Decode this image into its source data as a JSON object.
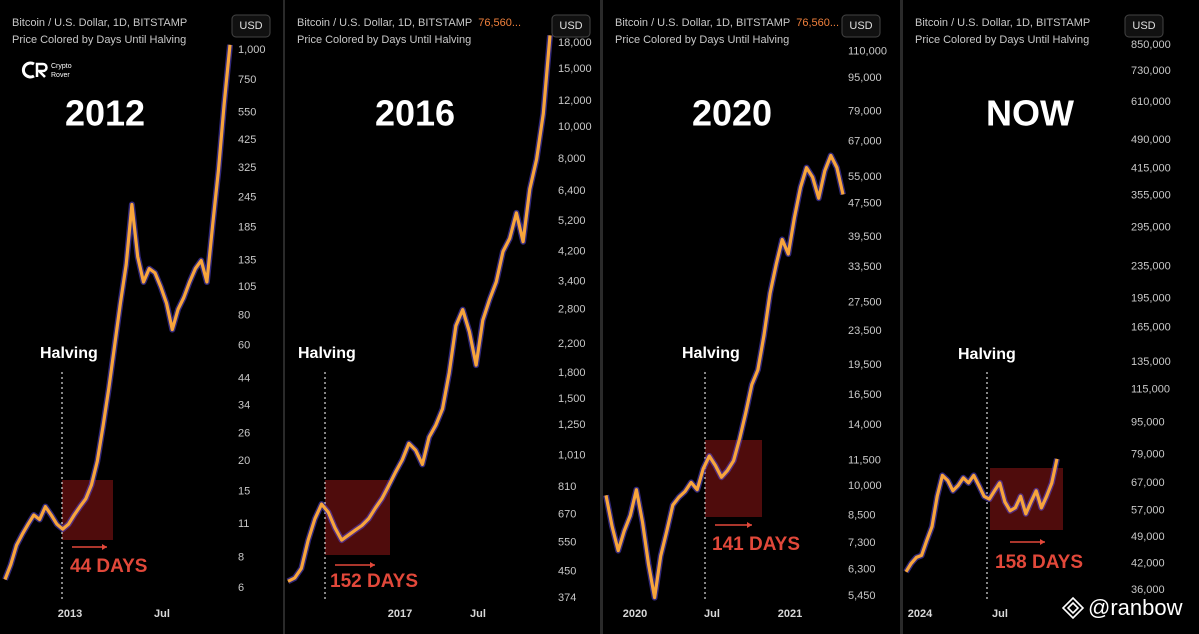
{
  "chart_data": [
    {
      "type": "line",
      "header": "Bitcoin / U.S. Dollar, 1D, BITSTAMP",
      "subtitle": "Price Colored by Days Until Halving",
      "currency": "USD",
      "title": "2012",
      "annotation": "Halving",
      "days_label": "44 DAYS",
      "color": "#f7a53c",
      "outline_color": "#5a48e0",
      "log_scale": true,
      "x_labels": [
        "2013",
        "Jul"
      ],
      "values": [
        6.5,
        7.5,
        9,
        10,
        11,
        12,
        11.5,
        13,
        12,
        11,
        10.5,
        11,
        12,
        13,
        14,
        16,
        20,
        28,
        40,
        60,
        90,
        130,
        230,
        140,
        110,
        125,
        120,
        105,
        90,
        70,
        85,
        95,
        110,
        125,
        135,
        110,
        190,
        320,
        600,
        1050
      ],
      "ylim": [
        5.1,
        1490
      ],
      "yticks": [
        {
          "value": 1000,
          "label": "1,000"
        },
        750,
        550,
        425,
        325,
        245,
        185,
        135,
        105,
        80,
        60,
        44,
        34,
        26,
        20,
        15,
        11,
        8,
        6
      ]
    },
    {
      "type": "line",
      "header": "Bitcoin / U.S. Dollar, 1D, BITSTAMP",
      "price": "76,560...",
      "subtitle": "Price Colored by Days Until Halving",
      "currency": "USD",
      "title": "2016",
      "annotation": "Halving",
      "days_label": "152 DAYS",
      "color": "#f7a53c",
      "outline_color": "#5a48e0",
      "log_scale": true,
      "x_labels": [
        "2017",
        "Jul"
      ],
      "values": [
        420,
        430,
        460,
        560,
        650,
        720,
        680,
        610,
        560,
        580,
        600,
        620,
        650,
        700,
        750,
        820,
        900,
        980,
        1100,
        1050,
        950,
        1150,
        1250,
        1400,
        1800,
        2500,
        2800,
        2400,
        1900,
        2600,
        3000,
        3400,
        4200,
        4600,
        5500,
        4500,
        6500,
        8000,
        11000,
        19000
      ],
      "ylim": [
        356,
        23000
      ],
      "yticks": [
        {
          "value": 18000,
          "label": "18,000"
        },
        {
          "value": 15000,
          "label": "15,000"
        },
        {
          "value": 12000,
          "label": "12,000"
        },
        {
          "value": 10000,
          "label": "10,000"
        },
        {
          "value": 8000,
          "label": "8,000"
        },
        {
          "value": 6400,
          "label": "6,400"
        },
        {
          "value": 5200,
          "label": "5,200"
        },
        {
          "value": 4200,
          "label": "4,200"
        },
        {
          "value": 3400,
          "label": "3,400"
        },
        {
          "value": 2800,
          "label": "2,800"
        },
        {
          "value": 2200,
          "label": "2,200"
        },
        {
          "value": 1800,
          "label": "1,800"
        },
        {
          "value": 1500,
          "label": "1,500"
        },
        {
          "value": 1250,
          "label": "1,250"
        },
        {
          "value": 1010,
          "label": "1,010"
        },
        810,
        670,
        550,
        450,
        374
      ]
    },
    {
      "type": "line",
      "header": "Bitcoin / U.S. Dollar, 1D, BITSTAMP",
      "price": "76,560...",
      "subtitle": "Price Colored by Days Until Halving",
      "currency": "USD",
      "title": "2020",
      "annotation": "Halving",
      "days_label": "141 DAYS",
      "color": "#f7a53c",
      "outline_color": "#5a48e0",
      "log_scale": true,
      "x_labels": [
        "2020",
        "Jul",
        "2021"
      ],
      "values": [
        9500,
        8000,
        7000,
        7800,
        8500,
        9800,
        8200,
        6500,
        5400,
        6800,
        7800,
        9000,
        9400,
        9700,
        10200,
        9800,
        11000,
        11800,
        11200,
        10500,
        10900,
        11500,
        13000,
        15000,
        17500,
        19000,
        23000,
        29000,
        34000,
        39000,
        36000,
        44000,
        52000,
        58000,
        55000,
        49000,
        57000,
        62000,
        58000,
        50000
      ],
      "ylim": [
        5185,
        140000
      ],
      "yticks": [
        {
          "value": 110000,
          "label": "110,000"
        },
        {
          "value": 95000,
          "label": "95,000"
        },
        {
          "value": 79000,
          "label": "79,000"
        },
        {
          "value": 67000,
          "label": "67,000"
        },
        {
          "value": 55000,
          "label": "55,000"
        },
        {
          "value": 47500,
          "label": "47,500"
        },
        {
          "value": 39500,
          "label": "39,500"
        },
        {
          "value": 33500,
          "label": "33,500"
        },
        {
          "value": 27500,
          "label": "27,500"
        },
        {
          "value": 23500,
          "label": "23,500"
        },
        {
          "value": 19500,
          "label": "19,500"
        },
        {
          "value": 16500,
          "label": "16,500"
        },
        {
          "value": 14000,
          "label": "14,000"
        },
        {
          "value": 11500,
          "label": "11,500"
        },
        {
          "value": 10000,
          "label": "10,000"
        },
        {
          "value": 8500,
          "label": "8,500"
        },
        {
          "value": 7300,
          "label": "7,300"
        },
        {
          "value": 6300,
          "label": "6,300"
        },
        {
          "value": 5450,
          "label": "5,450"
        }
      ]
    },
    {
      "type": "line",
      "header": "Bitcoin / U.S. Dollar, 1D, BITSTAMP",
      "subtitle": "Price Colored by Days Until Halving",
      "currency": "USD",
      "title": "NOW",
      "annotation": "Halving",
      "days_label": "158 DAYS",
      "color": "#f7a53c",
      "outline_color": "#5a48e0",
      "log_scale": true,
      "x_labels": [
        "2024",
        "Jul"
      ],
      "values": [
        40000,
        42000,
        43500,
        44000,
        48000,
        52000,
        62000,
        70000,
        68000,
        64000,
        66000,
        69000,
        67000,
        70000,
        66000,
        62000,
        61000,
        64000,
        67000,
        60000,
        57000,
        58000,
        62000,
        56000,
        60000,
        64000,
        58000,
        62000,
        67000,
        77000
      ],
      "ylim": [
        33000,
        1053000
      ],
      "yticks": [
        {
          "value": 850000,
          "label": "850,000"
        },
        {
          "value": 730000,
          "label": "730,000"
        },
        {
          "value": 610000,
          "label": "610,000"
        },
        {
          "value": 490000,
          "label": "490,000"
        },
        {
          "value": 415000,
          "label": "415,000"
        },
        {
          "value": 355000,
          "label": "355,000"
        },
        {
          "value": 295000,
          "label": "295,000"
        },
        {
          "value": 235000,
          "label": "235,000"
        },
        {
          "value": 195000,
          "label": "195,000"
        },
        {
          "value": 165000,
          "label": "165,000"
        },
        {
          "value": 135000,
          "label": "135,000"
        },
        {
          "value": 115000,
          "label": "115,000"
        },
        {
          "value": 95000,
          "label": "95,000"
        },
        {
          "value": 79000,
          "label": "79,000"
        },
        {
          "value": 67000,
          "label": "67,000"
        },
        {
          "value": 57000,
          "label": "57,000"
        },
        {
          "value": 49000,
          "label": "49,000"
        },
        {
          "value": 42000,
          "label": "42,000"
        },
        {
          "value": 36000,
          "label": "36,000"
        }
      ]
    }
  ],
  "logo": [
    "Crypto",
    "Rover"
  ],
  "watermark": "@ranbow"
}
